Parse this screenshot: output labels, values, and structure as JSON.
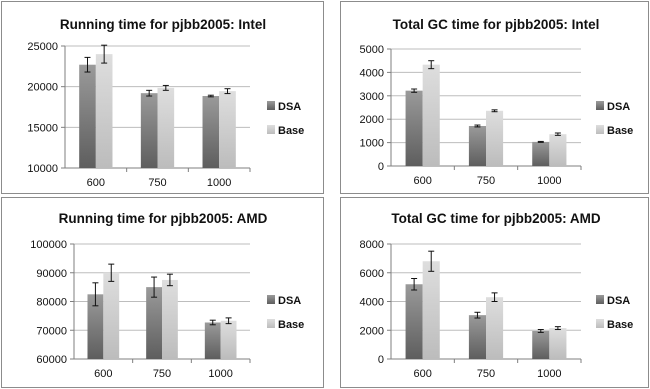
{
  "chart_data": [
    {
      "type": "bar",
      "title": "Running time for pjbb2005: Intel",
      "categories": [
        "600",
        "750",
        "1000"
      ],
      "ylim": [
        10000,
        25000
      ],
      "yticks": [
        "10000",
        "15000",
        "20000",
        "25000"
      ],
      "series": [
        {
          "name": "DSA",
          "values": [
            22700,
            19200,
            18850
          ],
          "errors": [
            900,
            350,
            100
          ]
        },
        {
          "name": "Base",
          "values": [
            24000,
            19850,
            19450
          ],
          "errors": [
            1100,
            300,
            300
          ]
        }
      ],
      "legend": "right",
      "grid": true
    },
    {
      "type": "bar",
      "title": "Total GC time for pjbb2005: Intel",
      "categories": [
        "600",
        "750",
        "1000"
      ],
      "ylim": [
        0,
        5000
      ],
      "yticks": [
        "0",
        "1000",
        "2000",
        "3000",
        "4000",
        "5000"
      ],
      "series": [
        {
          "name": "DSA",
          "values": [
            3220,
            1710,
            1030
          ],
          "errors": [
            70,
            40,
            20
          ]
        },
        {
          "name": "Base",
          "values": [
            4330,
            2360,
            1360
          ],
          "errors": [
            170,
            40,
            50
          ]
        }
      ],
      "legend": "right",
      "grid": true
    },
    {
      "type": "bar",
      "title": "Running time for pjbb2005: AMD",
      "categories": [
        "600",
        "750",
        "1000"
      ],
      "ylim": [
        60000,
        100000
      ],
      "yticks": [
        "60000",
        "70000",
        "80000",
        "90000",
        "100000"
      ],
      "series": [
        {
          "name": "DSA",
          "values": [
            82500,
            85000,
            72700
          ],
          "errors": [
            4000,
            3500,
            800
          ]
        },
        {
          "name": "Base",
          "values": [
            90000,
            87500,
            73300
          ],
          "errors": [
            3000,
            2000,
            1000
          ]
        }
      ],
      "legend": "right",
      "grid": true
    },
    {
      "type": "bar",
      "title": "Total GC time for pjbb2005: AMD",
      "categories": [
        "600",
        "750",
        "1000"
      ],
      "ylim": [
        0,
        8000
      ],
      "yticks": [
        "0",
        "2000",
        "4000",
        "6000",
        "8000"
      ],
      "series": [
        {
          "name": "DSA",
          "values": [
            5200,
            3050,
            1950
          ],
          "errors": [
            400,
            200,
            100
          ]
        },
        {
          "name": "Base",
          "values": [
            6800,
            4300,
            2150
          ],
          "errors": [
            700,
            300,
            100
          ]
        }
      ],
      "legend": "right",
      "grid": true
    }
  ],
  "colors": {
    "dsa_top": "#9a9a9a",
    "dsa_bottom": "#5e5e5e",
    "base_top": "#dedede",
    "base_bottom": "#bcbcbc",
    "grid": "#bdbdbd",
    "axis": "#7f7f7f"
  }
}
